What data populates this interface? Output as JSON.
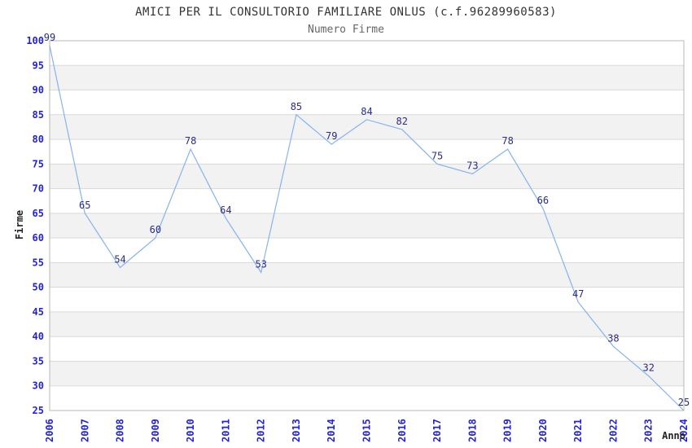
{
  "header": {
    "title": "AMICI PER IL CONSULTORIO FAMILIARE ONLUS (c.f.96289960583)",
    "subtitle": "Numero Firme"
  },
  "chart_data": {
    "type": "line",
    "title": "AMICI PER IL CONSULTORIO FAMILIARE ONLUS (c.f.96289960583)",
    "subtitle": "Numero Firme",
    "xlabel": "Anno",
    "ylabel": "Firme",
    "x": [
      "2006",
      "2007",
      "2008",
      "2009",
      "2010",
      "2011",
      "2012",
      "2013",
      "2014",
      "2015",
      "2016",
      "2017",
      "2018",
      "2019",
      "2020",
      "2021",
      "2022",
      "2023",
      "2024"
    ],
    "series": [
      {
        "name": "Numero Firme",
        "values": [
          99,
          65,
          54,
          60,
          78,
          64,
          53,
          85,
          79,
          84,
          82,
          75,
          73,
          78,
          66,
          47,
          38,
          32,
          25
        ]
      }
    ],
    "ylim": [
      25,
      100
    ],
    "ytick_step": 5,
    "grid": true,
    "legend_position": "none",
    "point_labels": true,
    "style": {
      "line_color": "#85b4ec",
      "point_label_color": "#2b2b85",
      "tick_label_color": "#2222dd",
      "band_color": "#f2f2f2",
      "gridline_color": "#d9d9d9",
      "border_color": "#b8b8b8",
      "title_color": "#333333",
      "subtitle_color": "#666666"
    }
  }
}
